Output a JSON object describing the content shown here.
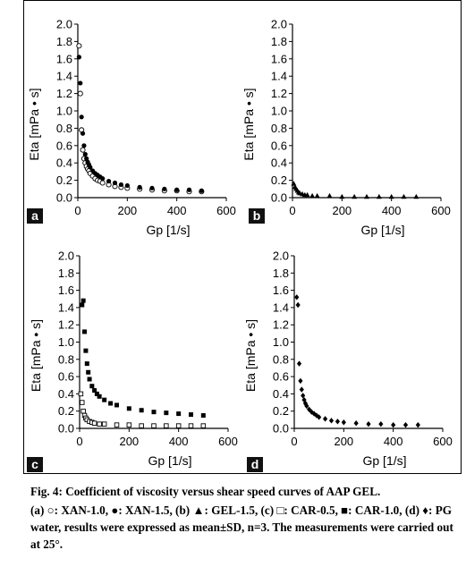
{
  "caption": {
    "title": "Fig. 4: Coefficient of viscosity versus shear speed curves of AAP GEL.",
    "body": "(a) ○: XAN-1.0, ●: XAN-1.5, (b) ▲: GEL-1.5, (c) □: CAR-0.5, ■: CAR-1.0, (d) ♦: PG water, results were expressed as mean±SD, n=3. The measurements were carried out at 25°."
  },
  "chart_data": [
    {
      "panel": "a",
      "type": "scatter",
      "xlabel": "Gp [1/s]",
      "ylabel": "Eta [mPa • s]",
      "xlim": [
        0,
        600
      ],
      "ylim": [
        0,
        2.0
      ],
      "xticks": [
        "0",
        "200",
        "400",
        "600"
      ],
      "yticks": [
        "0.0",
        "0.2",
        "0.4",
        "0.6",
        "0.8",
        "1.0",
        "1.2",
        "1.4",
        "1.6",
        "1.8",
        "2.0"
      ],
      "series": [
        {
          "marker": "open-circle",
          "x": [
            5,
            10,
            15,
            20,
            25,
            30,
            35,
            40,
            45,
            50,
            60,
            70,
            80,
            90,
            100,
            125,
            150,
            175,
            200,
            250,
            300,
            350,
            400,
            450,
            500
          ],
          "y": [
            1.75,
            1.2,
            0.78,
            0.55,
            0.45,
            0.4,
            0.36,
            0.33,
            0.31,
            0.28,
            0.25,
            0.22,
            0.2,
            0.19,
            0.17,
            0.15,
            0.13,
            0.12,
            0.11,
            0.1,
            0.09,
            0.08,
            0.08,
            0.07,
            0.07
          ]
        },
        {
          "marker": "filled-circle",
          "x": [
            5,
            10,
            15,
            20,
            25,
            30,
            35,
            40,
            45,
            50,
            60,
            70,
            80,
            90,
            100,
            125,
            150,
            175,
            200,
            250,
            300,
            350,
            400,
            450,
            500
          ],
          "y": [
            1.62,
            1.32,
            0.93,
            0.74,
            0.6,
            0.5,
            0.45,
            0.41,
            0.38,
            0.35,
            0.31,
            0.28,
            0.26,
            0.24,
            0.22,
            0.19,
            0.17,
            0.15,
            0.14,
            0.12,
            0.11,
            0.1,
            0.09,
            0.09,
            0.08
          ]
        }
      ]
    },
    {
      "panel": "b",
      "type": "scatter",
      "xlabel": "Gp [1/s]",
      "ylabel": "Eta [mPa • s]",
      "xlim": [
        0,
        600
      ],
      "ylim": [
        0,
        2.0
      ],
      "xticks": [
        "0",
        "200",
        "400",
        "600"
      ],
      "yticks": [
        "0.0",
        "0.2",
        "0.4",
        "0.6",
        "0.8",
        "1.0",
        "1.2",
        "1.4",
        "1.6",
        "1.8",
        "2.0"
      ],
      "series": [
        {
          "marker": "filled-triangle",
          "x": [
            5,
            10,
            15,
            20,
            25,
            30,
            40,
            50,
            60,
            80,
            100,
            150,
            200,
            250,
            300,
            350,
            400,
            450,
            500
          ],
          "y": [
            0.16,
            0.12,
            0.1,
            0.08,
            0.06,
            0.05,
            0.04,
            0.03,
            0.03,
            0.02,
            0.02,
            0.02,
            0.01,
            0.01,
            0.01,
            0.01,
            0.01,
            0.01,
            0.01
          ]
        }
      ]
    },
    {
      "panel": "c",
      "type": "scatter",
      "xlabel": "Gp [1/s]",
      "ylabel": "Eta [mPa • s]",
      "xlim": [
        0,
        600
      ],
      "ylim": [
        0,
        2.0
      ],
      "xticks": [
        "0",
        "200",
        "400",
        "600"
      ],
      "yticks": [
        "0.0",
        "0.2",
        "0.4",
        "0.6",
        "0.8",
        "1.0",
        "1.2",
        "1.4",
        "1.6",
        "1.8",
        "2.0"
      ],
      "series": [
        {
          "marker": "open-square",
          "x": [
            5,
            10,
            15,
            20,
            25,
            30,
            40,
            50,
            60,
            80,
            100,
            150,
            200,
            250,
            300,
            350,
            400,
            450,
            500
          ],
          "y": [
            0.4,
            0.3,
            0.2,
            0.15,
            0.12,
            0.1,
            0.08,
            0.07,
            0.06,
            0.05,
            0.05,
            0.04,
            0.04,
            0.03,
            0.03,
            0.03,
            0.03,
            0.03,
            0.03
          ]
        },
        {
          "marker": "filled-square",
          "x": [
            10,
            15,
            20,
            25,
            30,
            35,
            40,
            50,
            60,
            70,
            80,
            100,
            125,
            150,
            200,
            250,
            300,
            350,
            400,
            450,
            500
          ],
          "y": [
            1.43,
            1.48,
            1.12,
            0.9,
            0.75,
            0.65,
            0.57,
            0.49,
            0.44,
            0.4,
            0.37,
            0.33,
            0.29,
            0.27,
            0.23,
            0.21,
            0.19,
            0.18,
            0.17,
            0.16,
            0.15
          ]
        }
      ]
    },
    {
      "panel": "d",
      "type": "scatter",
      "xlabel": "Gp [1/s]",
      "ylabel": "Eta [mPa • s]",
      "xlim": [
        0,
        600
      ],
      "ylim": [
        0,
        2.0
      ],
      "xticks": [
        "0",
        "200",
        "400",
        "600"
      ],
      "yticks": [
        "0.0",
        "0.2",
        "0.4",
        "0.6",
        "0.8",
        "1.0",
        "1.2",
        "1.4",
        "1.6",
        "1.8",
        "2.0"
      ],
      "series": [
        {
          "marker": "filled-diamond",
          "x": [
            10,
            15,
            20,
            25,
            30,
            35,
            40,
            45,
            50,
            60,
            70,
            80,
            90,
            100,
            125,
            150,
            175,
            200,
            250,
            300,
            350,
            400,
            450,
            500
          ],
          "y": [
            1.52,
            1.43,
            0.75,
            0.55,
            0.45,
            0.38,
            0.33,
            0.29,
            0.26,
            0.22,
            0.19,
            0.17,
            0.15,
            0.13,
            0.11,
            0.09,
            0.08,
            0.07,
            0.06,
            0.05,
            0.05,
            0.04,
            0.04,
            0.04
          ]
        }
      ]
    }
  ]
}
